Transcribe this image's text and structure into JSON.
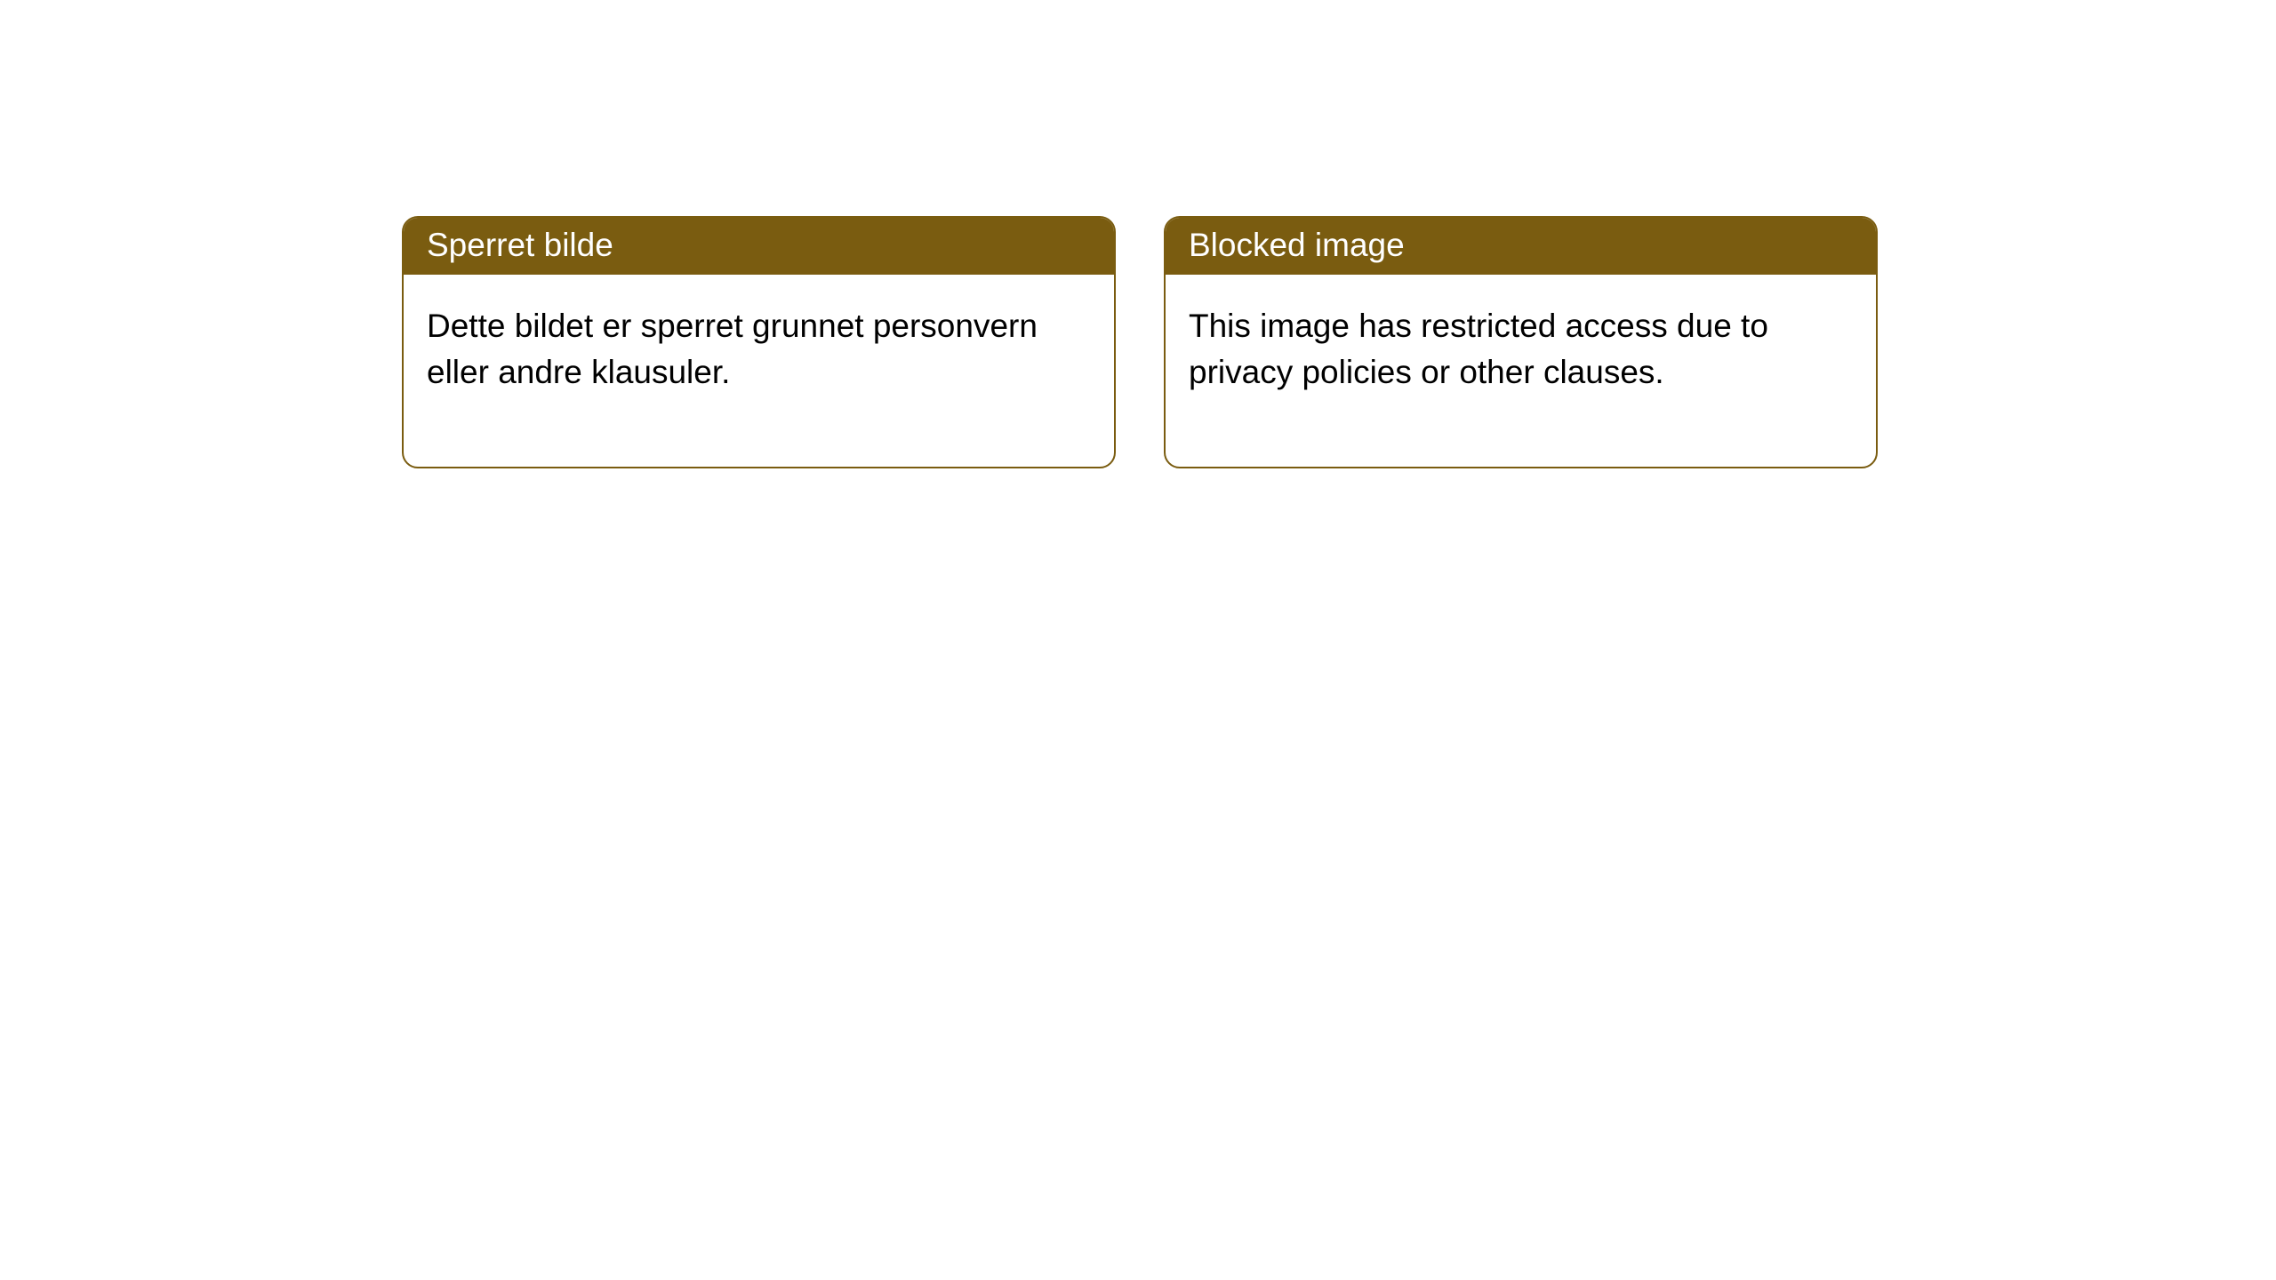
{
  "notices": [
    {
      "title": "Sperret bilde",
      "body": "Dette bildet er sperret grunnet personvern eller andre klausuler."
    },
    {
      "title": "Blocked image",
      "body": "This image has restricted access due to privacy policies or other clauses."
    }
  ],
  "style": {
    "header_bg": "#7a5c10",
    "header_color": "#ffffff",
    "border_color": "#7a5c10",
    "body_bg": "#ffffff",
    "body_color": "#000000",
    "border_radius": 18,
    "title_fontsize": 37,
    "body_fontsize": 37
  }
}
